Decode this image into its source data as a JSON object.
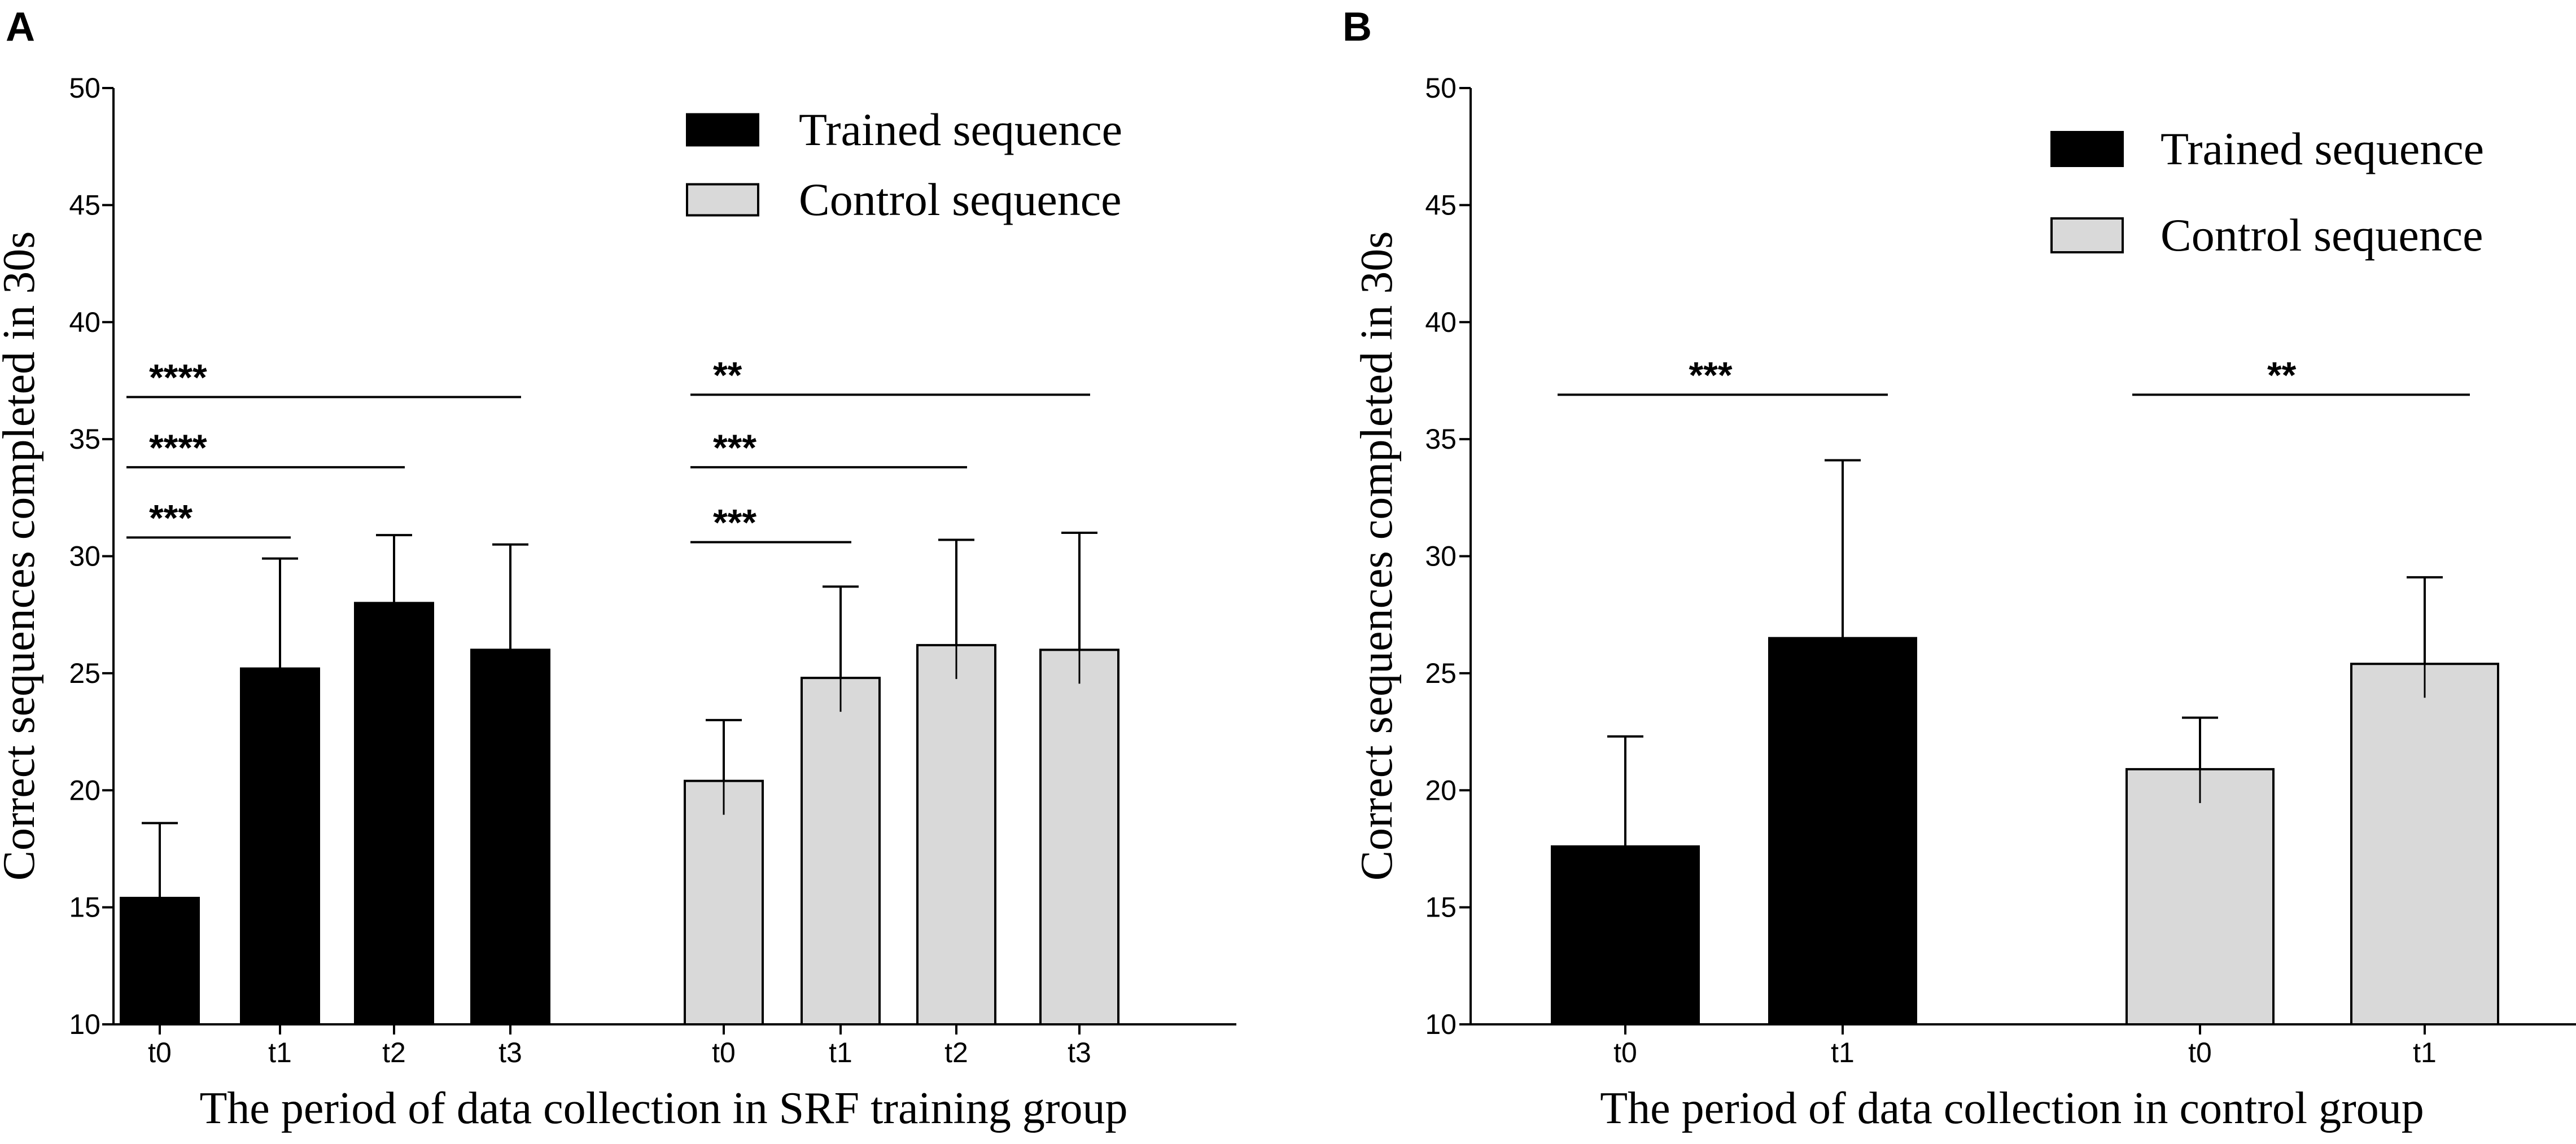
{
  "colors": {
    "trained": "#000000",
    "control": "#d9d9d9",
    "axis": "#000000",
    "background": "#ffffff"
  },
  "chart_data": [
    {
      "panel": "A",
      "type": "bar",
      "xlabel": "The period of data collection in SRF training group",
      "ylabel": "Correct sequences completed in 30s",
      "ylim": [
        10,
        50
      ],
      "yticks": [
        "10",
        "15",
        "20",
        "25",
        "30",
        "35",
        "40",
        "45",
        "50"
      ],
      "legend": {
        "position": "top-right",
        "entries": [
          "Trained sequence",
          "Control sequence"
        ]
      },
      "series": [
        {
          "name": "Trained sequence",
          "categories": [
            "t0",
            "t1",
            "t2",
            "t3"
          ],
          "values": [
            15.4,
            25.2,
            28.0,
            26.0
          ],
          "errors": [
            3.2,
            4.7,
            2.9,
            4.5
          ]
        },
        {
          "name": "Control sequence",
          "categories": [
            "t0",
            "t1",
            "t2",
            "t3"
          ],
          "values": [
            20.4,
            24.8,
            26.2,
            26.0
          ],
          "errors": [
            2.6,
            3.9,
            4.5,
            5.0
          ]
        }
      ],
      "significance": [
        {
          "series": 0,
          "from": 0,
          "to": 1,
          "y": 30.8,
          "label": "***"
        },
        {
          "series": 0,
          "from": 0,
          "to": 2,
          "y": 33.8,
          "label": "****"
        },
        {
          "series": 0,
          "from": 0,
          "to": 3,
          "y": 36.8,
          "label": "****"
        },
        {
          "series": 1,
          "from": 0,
          "to": 1,
          "y": 30.6,
          "label": "***"
        },
        {
          "series": 1,
          "from": 0,
          "to": 2,
          "y": 33.8,
          "label": "***"
        },
        {
          "series": 1,
          "from": 0,
          "to": 3,
          "y": 36.9,
          "label": "**"
        }
      ]
    },
    {
      "panel": "B",
      "type": "bar",
      "xlabel": "The period of data collection in control group",
      "ylabel": "Correct sequences completed in 30s",
      "ylim": [
        10,
        50
      ],
      "yticks": [
        "10",
        "15",
        "20",
        "25",
        "30",
        "35",
        "40",
        "45",
        "50"
      ],
      "legend": {
        "position": "top-right",
        "entries": [
          "Trained sequence",
          "Control sequence"
        ]
      },
      "series": [
        {
          "name": "Trained sequence",
          "categories": [
            "t0",
            "t1"
          ],
          "values": [
            17.6,
            26.5
          ],
          "errors": [
            4.7,
            7.6
          ]
        },
        {
          "name": "Control sequence",
          "categories": [
            "t0",
            "t1"
          ],
          "values": [
            20.9,
            25.4
          ],
          "errors": [
            2.2,
            3.7
          ]
        }
      ],
      "significance": [
        {
          "series": 0,
          "from": 0,
          "to": 1,
          "y": 36.9,
          "label": "***"
        },
        {
          "series": 1,
          "from": 0,
          "to": 1,
          "y": 36.9,
          "label": "**"
        }
      ]
    }
  ]
}
